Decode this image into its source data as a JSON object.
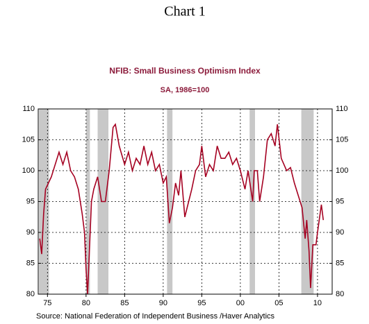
{
  "chart_data": {
    "type": "line",
    "page_title": "Chart 1",
    "title": "NFIB: Small Business Optimism Index",
    "subtitle": "SA, 1986=100",
    "source": "Source:  National Federation of Independent Business /Haver Analytics",
    "x": [
      1974.0,
      1974.25,
      1974.5,
      1974.75,
      1975.5,
      1976.5,
      1977.0,
      1977.5,
      1978.0,
      1978.5,
      1979.0,
      1979.5,
      1979.8,
      1980.0,
      1980.2,
      1980.7,
      1981.0,
      1981.5,
      1982.0,
      1982.5,
      1983.0,
      1983.5,
      1983.8,
      1984.3,
      1985.0,
      1985.5,
      1986.0,
      1986.5,
      1987.0,
      1987.5,
      1988.0,
      1988.5,
      1989.0,
      1989.5,
      1990.0,
      1990.4,
      1990.8,
      1991.2,
      1991.6,
      1992.0,
      1992.3,
      1992.8,
      1993.3,
      1993.7,
      1994.2,
      1994.7,
      1995.0,
      1995.5,
      1996.0,
      1996.5,
      1997.0,
      1997.5,
      1998.0,
      1998.5,
      1999.0,
      1999.5,
      2000.0,
      2000.6,
      2001.0,
      2001.6,
      2001.8,
      2002.2,
      2002.5,
      2003.0,
      2003.5,
      2004.0,
      2004.5,
      2004.8,
      2005.3,
      2006.0,
      2006.5,
      2007.0,
      2007.5,
      2008.0,
      2008.4,
      2008.6,
      2008.9,
      2009.1,
      2009.4,
      2009.8,
      2010.0,
      2010.5,
      2010.75
    ],
    "series": [
      {
        "name": "NFIB Small Business Optimism Index",
        "color": "#a50021",
        "values": [
          89,
          86.5,
          93,
          97,
          99,
          103,
          101,
          103,
          100,
          99,
          97,
          93,
          90,
          84,
          80,
          95,
          97,
          99,
          95,
          95,
          100,
          107,
          107.5,
          104,
          101,
          103,
          100,
          102,
          101,
          104,
          101,
          103,
          100,
          101,
          98,
          99,
          91.5,
          94,
          98,
          96,
          100,
          92.5,
          95,
          97,
          100,
          101,
          104,
          99,
          101,
          100,
          104,
          102,
          102,
          103,
          101,
          102,
          100,
          97,
          100,
          95,
          100,
          100,
          95,
          99,
          105,
          106,
          104,
          107.5,
          102,
          100,
          100.5,
          98,
          96,
          94,
          89,
          92,
          87,
          81,
          88,
          88,
          90,
          94.5,
          92
        ]
      }
    ],
    "shaded_periods": [
      [
        1973.9,
        1975.2
      ],
      [
        1980.0,
        1980.5
      ],
      [
        1981.5,
        1982.9
      ],
      [
        1990.5,
        1991.2
      ],
      [
        2001.2,
        2001.9
      ],
      [
        2007.9,
        2009.5
      ]
    ],
    "shade_color": "#c8c8c8",
    "xlim": [
      1973.8,
      2011.9
    ],
    "xticks": [
      {
        "value": 1975,
        "label": "75"
      },
      {
        "value": 1980,
        "label": "80"
      },
      {
        "value": 1985,
        "label": "85"
      },
      {
        "value": 1990,
        "label": "90"
      },
      {
        "value": 1995,
        "label": "95"
      },
      {
        "value": 2000,
        "label": "00"
      },
      {
        "value": 2005,
        "label": "05"
      },
      {
        "value": 2010,
        "label": "10"
      }
    ],
    "ylim": [
      80,
      110
    ],
    "yticks": [
      80,
      85,
      90,
      95,
      100,
      105,
      110
    ],
    "y2lim": [
      80,
      110
    ],
    "y2ticks": [
      80,
      85,
      90,
      95,
      100,
      105,
      110
    ],
    "grid": true
  }
}
